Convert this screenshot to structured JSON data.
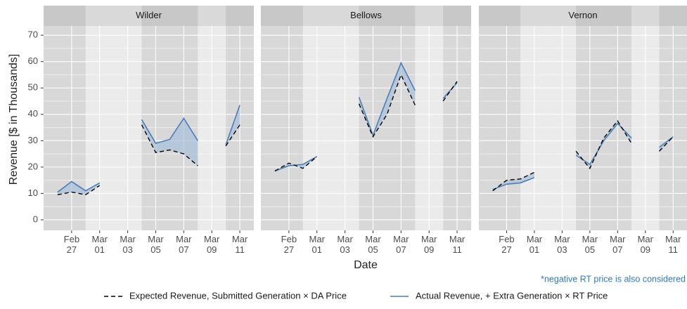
{
  "chart_data": [
    {
      "type": "line",
      "title": "Wilder",
      "x": [
        "Feb 26",
        "Feb 27",
        "Feb 28",
        "Mar 01",
        "Mar 02",
        "Mar 03",
        "Mar 04",
        "Mar 05",
        "Mar 06",
        "Mar 07",
        "Mar 08",
        "Mar 09",
        "Mar 10",
        "Mar 11"
      ],
      "series": [
        {
          "name": "Expected Revenue, Submitted Generation × DA Price",
          "color": "#000000",
          "dash": true,
          "values": [
            9.5,
            10.5,
            9.5,
            13,
            null,
            null,
            36,
            25.5,
            26.5,
            25,
            20.5,
            null,
            28,
            36
          ]
        },
        {
          "name": "Actual Revenue, + Extra Generation × RT Price",
          "color": "#4a7fb5",
          "dash": false,
          "values": [
            10.5,
            14.5,
            11,
            14,
            null,
            null,
            38,
            29,
            30.5,
            38.5,
            30,
            null,
            28.5,
            43.5
          ]
        }
      ],
      "fill_between": "#a9c2da",
      "highlight_spans": [
        [
          "Feb 25",
          "Feb 28"
        ],
        [
          "Mar 04",
          "Mar 08"
        ],
        [
          "Mar 10",
          "Mar 12"
        ]
      ],
      "xlim": [
        "Feb 25",
        "Mar 12"
      ],
      "xticks": [
        "Feb 27",
        "Mar 01",
        "Mar 03",
        "Mar 05",
        "Mar 07",
        "Mar 09",
        "Mar 11"
      ],
      "ylim": [
        -4,
        73.5
      ],
      "yticks": [
        0,
        10,
        20,
        30,
        40,
        50,
        60,
        70
      ],
      "grid": true
    },
    {
      "type": "line",
      "title": "Bellows",
      "x": [
        "Feb 26",
        "Feb 27",
        "Feb 28",
        "Mar 01",
        "Mar 02",
        "Mar 03",
        "Mar 04",
        "Mar 05",
        "Mar 06",
        "Mar 07",
        "Mar 08",
        "Mar 09",
        "Mar 10",
        "Mar 11"
      ],
      "series": [
        {
          "name": "Expected Revenue, Submitted Generation × DA Price",
          "color": "#000000",
          "dash": true,
          "values": [
            18.5,
            21.5,
            19.5,
            24,
            null,
            null,
            44,
            31.5,
            40,
            55,
            43.5,
            null,
            45,
            52.5
          ]
        },
        {
          "name": "Actual Revenue, + Extra Generation × RT Price",
          "color": "#4a7fb5",
          "dash": false,
          "values": [
            18.5,
            20.5,
            21,
            24,
            null,
            null,
            46.5,
            32,
            46,
            59.5,
            49,
            null,
            46,
            52
          ]
        }
      ],
      "fill_between": "#a9c2da",
      "highlight_spans": [
        [
          "Feb 25",
          "Feb 28"
        ],
        [
          "Mar 04",
          "Mar 08"
        ],
        [
          "Mar 10",
          "Mar 12"
        ]
      ],
      "xlim": [
        "Feb 25",
        "Mar 12"
      ],
      "xticks": [
        "Feb 27",
        "Mar 01",
        "Mar 03",
        "Mar 05",
        "Mar 07",
        "Mar 09",
        "Mar 11"
      ],
      "ylim": [
        -4,
        73.5
      ],
      "yticks": [
        0,
        10,
        20,
        30,
        40,
        50,
        60,
        70
      ],
      "grid": true
    },
    {
      "type": "line",
      "title": "Vernon",
      "x": [
        "Feb 26",
        "Feb 27",
        "Feb 28",
        "Mar 01",
        "Mar 02",
        "Mar 03",
        "Mar 04",
        "Mar 05",
        "Mar 06",
        "Mar 07",
        "Mar 08",
        "Mar 09",
        "Mar 10",
        "Mar 11"
      ],
      "series": [
        {
          "name": "Expected Revenue, Submitted Generation × DA Price",
          "color": "#000000",
          "dash": true,
          "values": [
            11,
            15,
            15.5,
            18,
            null,
            null,
            26,
            19.5,
            31,
            37.5,
            29,
            null,
            26,
            31.5
          ]
        },
        {
          "name": "Actual Revenue, + Extra Generation × RT Price",
          "color": "#4a7fb5",
          "dash": false,
          "values": [
            11.5,
            13.5,
            14,
            16,
            null,
            null,
            24.5,
            21,
            30,
            36.5,
            31,
            null,
            27.5,
            31.5
          ]
        }
      ],
      "fill_between": "#a9c2da",
      "highlight_spans": [
        [
          "Feb 25",
          "Feb 28"
        ],
        [
          "Mar 04",
          "Mar 08"
        ],
        [
          "Mar 10",
          "Mar 12"
        ]
      ],
      "xlim": [
        "Feb 25",
        "Mar 12"
      ],
      "xticks": [
        "Feb 27",
        "Mar 01",
        "Mar 03",
        "Mar 05",
        "Mar 07",
        "Mar 09",
        "Mar 11"
      ],
      "ylim": [
        -4,
        73.5
      ],
      "yticks": [
        0,
        10,
        20,
        30,
        40,
        50,
        60,
        70
      ],
      "grid": true
    }
  ],
  "axis_labels": {
    "x": "Date",
    "y": "Revenue [$ in Thousands]"
  },
  "note": "*negative RT price is also considered"
}
